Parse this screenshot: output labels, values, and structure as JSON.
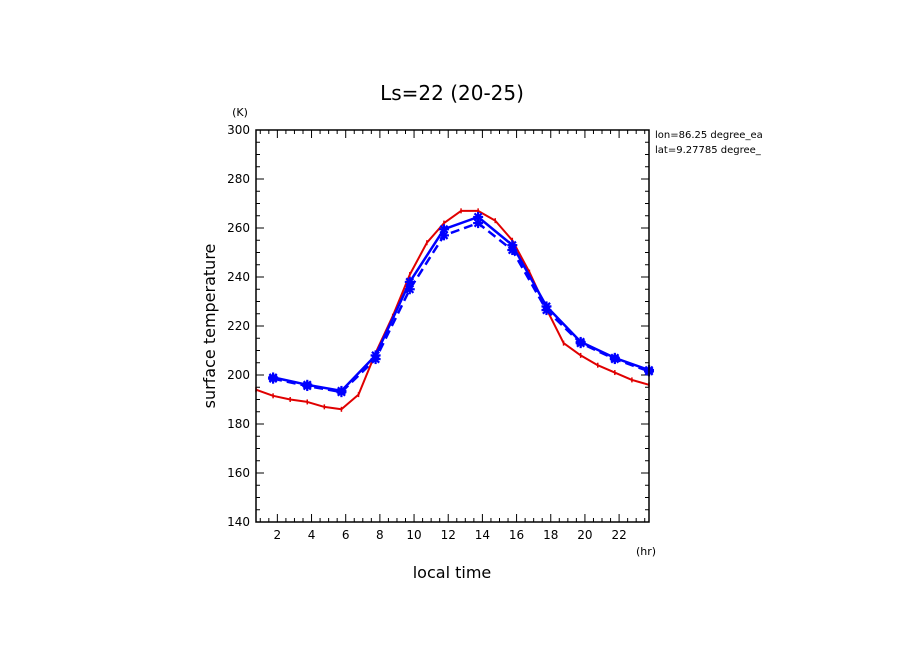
{
  "chart_data": {
    "type": "line",
    "title": "Ls=22 (20-25)",
    "xlabel": "local time",
    "ylabel": "surface temperature",
    "x_unit": "(hr)",
    "y_unit": "(K)",
    "xlim": [
      0.75,
      23.75
    ],
    "ylim": [
      140,
      300
    ],
    "x_ticks": [
      2,
      4,
      6,
      8,
      10,
      12,
      14,
      16,
      18,
      20,
      22
    ],
    "y_ticks": [
      140,
      160,
      180,
      200,
      220,
      240,
      260,
      280,
      300
    ],
    "annotations": [
      "lon=86.25 degree_ea",
      "lat=9.27785 degree_"
    ],
    "grid": false,
    "series": [
      {
        "color": "#e00000",
        "marker": "small-tick",
        "dash": "solid",
        "x": [
          0.75,
          1.75,
          2.75,
          3.75,
          4.75,
          5.75,
          6.75,
          7.75,
          8.75,
          9.75,
          10.75,
          11.75,
          12.75,
          13.75,
          14.75,
          15.75,
          16.75,
          17.75,
          18.75,
          19.75,
          20.75,
          21.75,
          22.75,
          23.75
        ],
        "y": [
          194,
          191.5,
          190,
          189,
          187,
          186,
          192,
          209,
          224,
          241,
          254,
          262,
          267,
          267,
          263,
          255,
          242,
          227,
          213,
          208,
          204,
          201,
          198,
          196
        ]
      },
      {
        "color": "#0000ff",
        "marker": "star",
        "dash": "solid",
        "x": [
          1.75,
          3.75,
          5.75,
          7.75,
          9.75,
          11.75,
          13.75,
          15.75,
          17.75,
          19.75,
          21.75,
          23.75
        ],
        "y": [
          199,
          196,
          193.5,
          208,
          238,
          259.5,
          264.5,
          253,
          228,
          213.5,
          207,
          202
        ]
      },
      {
        "color": "#0000ff",
        "marker": "star",
        "dash": "dashed",
        "x": [
          1.75,
          3.75,
          5.75,
          7.75,
          9.75,
          11.75,
          13.75,
          15.75,
          17.75,
          19.75,
          21.75,
          23.75
        ],
        "y": [
          198.5,
          195.5,
          193,
          206.5,
          235,
          257,
          262,
          251,
          226.5,
          213,
          206.5,
          201.5
        ]
      }
    ]
  }
}
